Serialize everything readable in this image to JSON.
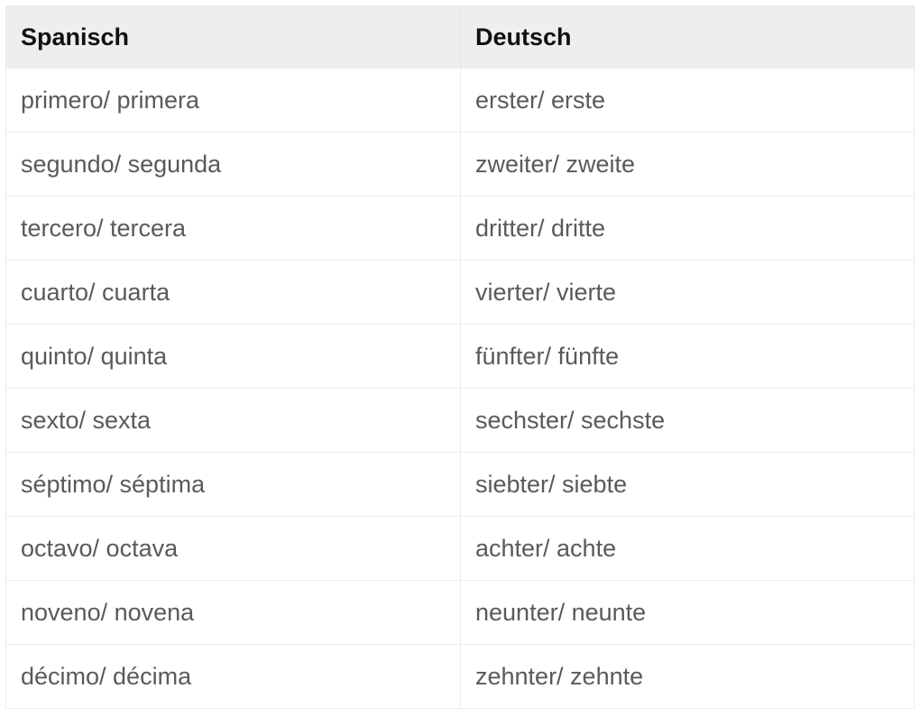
{
  "table": {
    "headers": [
      "Spanisch",
      "Deutsch"
    ],
    "rows": [
      [
        "primero/ primera",
        "erster/ erste"
      ],
      [
        "segundo/ segunda",
        "zweiter/ zweite"
      ],
      [
        "tercero/ tercera",
        "dritter/ dritte"
      ],
      [
        "cuarto/ cuarta",
        "vierter/ vierte"
      ],
      [
        "quinto/ quinta",
        "fünfter/ fünfte"
      ],
      [
        "sexto/ sexta",
        "sechster/ sechste"
      ],
      [
        "séptimo/ séptima",
        "siebter/ siebte"
      ],
      [
        "octavo/ octava",
        "achter/ achte"
      ],
      [
        "noveno/ novena",
        "neunter/ neunte"
      ],
      [
        "décimo/ décima",
        "zehnter/ zehnte"
      ]
    ]
  },
  "colors": {
    "header_bg": "#eeeeee",
    "header_text": "#111111",
    "cell_text": "#5a5a5a"
  }
}
